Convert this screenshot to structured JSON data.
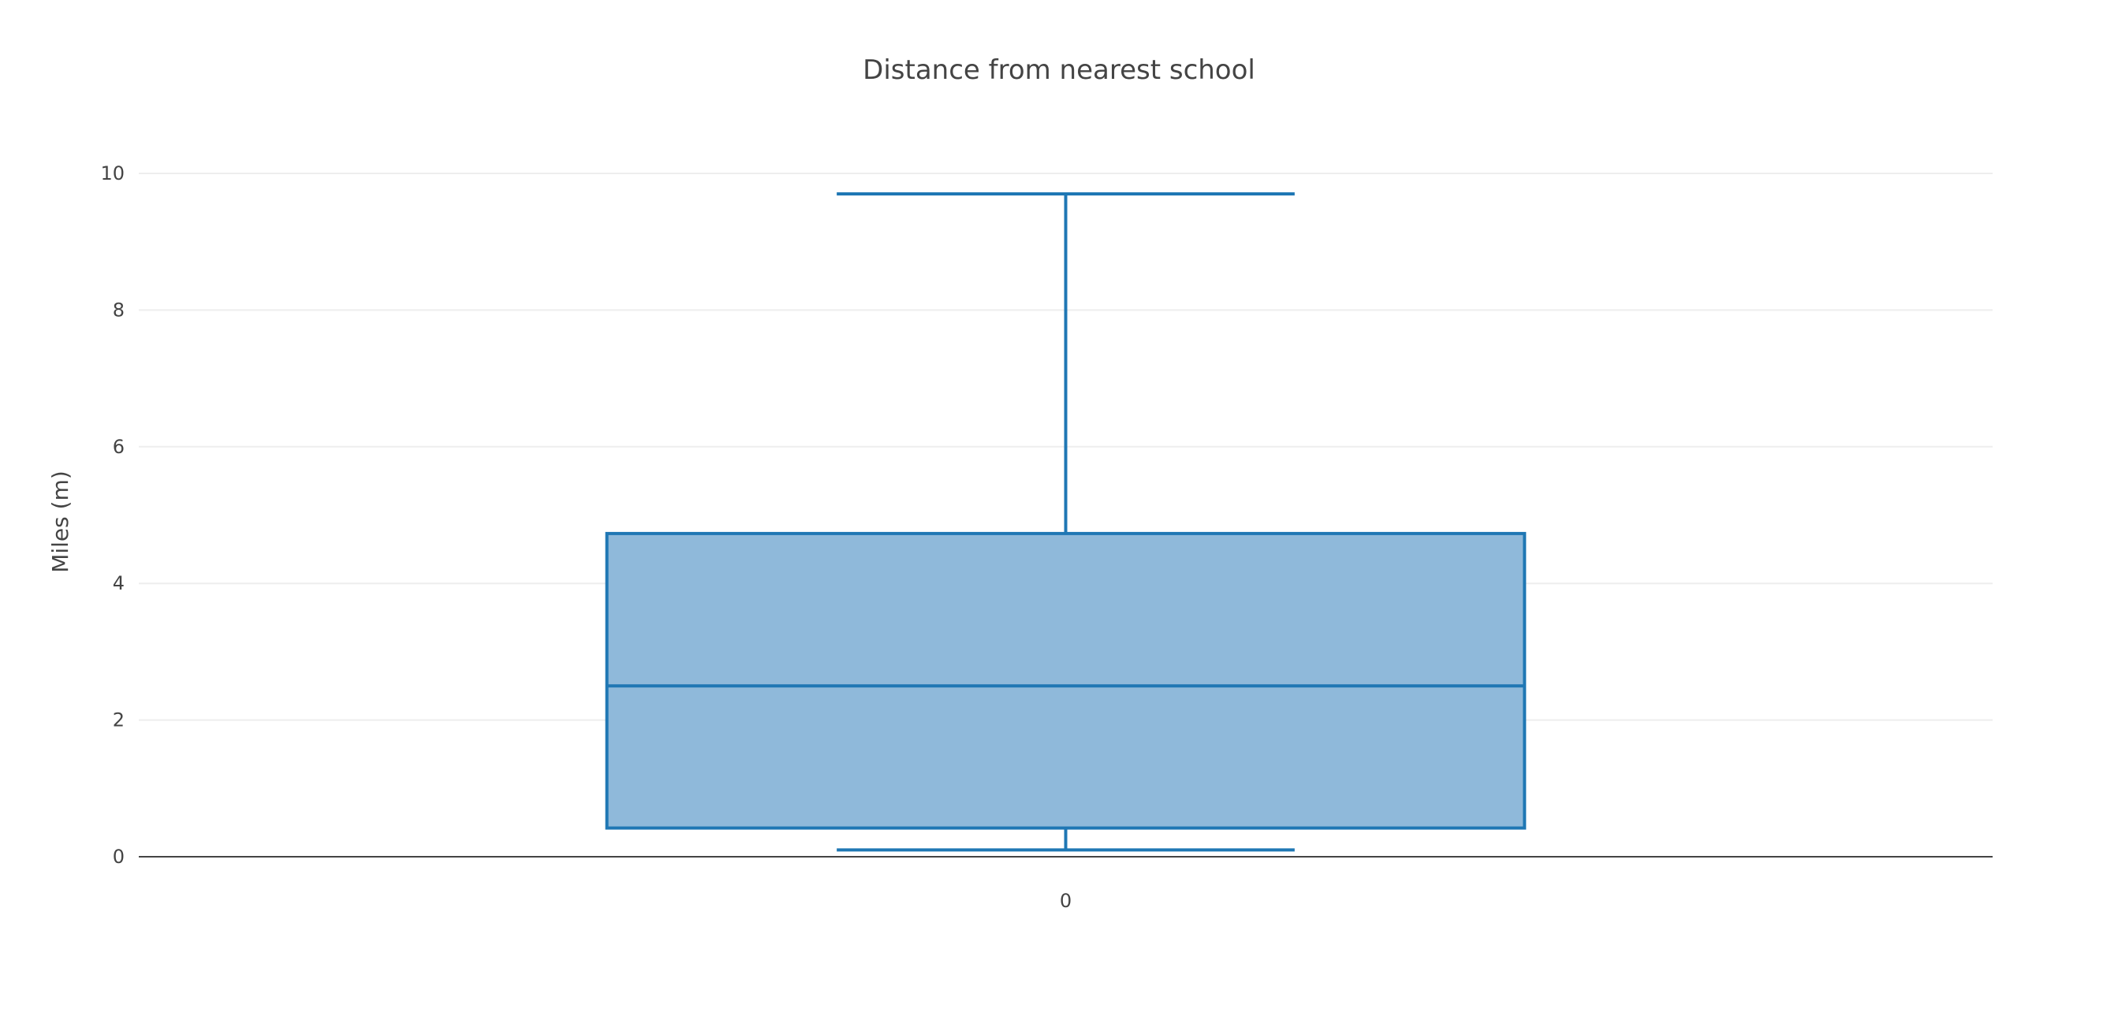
{
  "chart_data": {
    "type": "box",
    "title": "Distance from nearest school",
    "xlabel": "",
    "ylabel": "Miles (m)",
    "ylim": [
      0,
      10
    ],
    "yticks": [
      0,
      2,
      4,
      6,
      8,
      10
    ],
    "categories": [
      "0"
    ],
    "series": [
      {
        "category": "0",
        "min": 0.1,
        "q1": 0.42,
        "median": 2.5,
        "q3": 4.73,
        "max": 9.7
      }
    ],
    "grid": true,
    "legend": "none",
    "colors": {
      "box_fill": "#8fb9da",
      "box_line": "#1f77b4",
      "grid": "#eeeeee",
      "text": "#444444"
    }
  }
}
